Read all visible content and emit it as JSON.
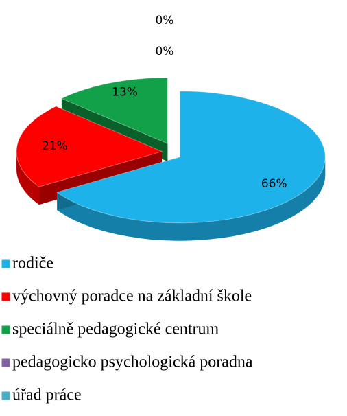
{
  "chart_data": {
    "type": "pie",
    "categories": [
      "rodiče",
      "výchovný poradce na základní škole",
      "speciálně pedagogické centrum",
      "pedagogicko psychologická poradna",
      "úřad práce"
    ],
    "values": [
      66,
      21,
      13,
      0,
      0
    ],
    "value_labels": [
      "66%",
      "21%",
      "13%",
      "0%",
      "0%"
    ],
    "colors": [
      "#1db2ea",
      "#ff0000",
      "#12a048",
      "#8064a2",
      "#4bacc6"
    ],
    "legend": "bottom"
  }
}
